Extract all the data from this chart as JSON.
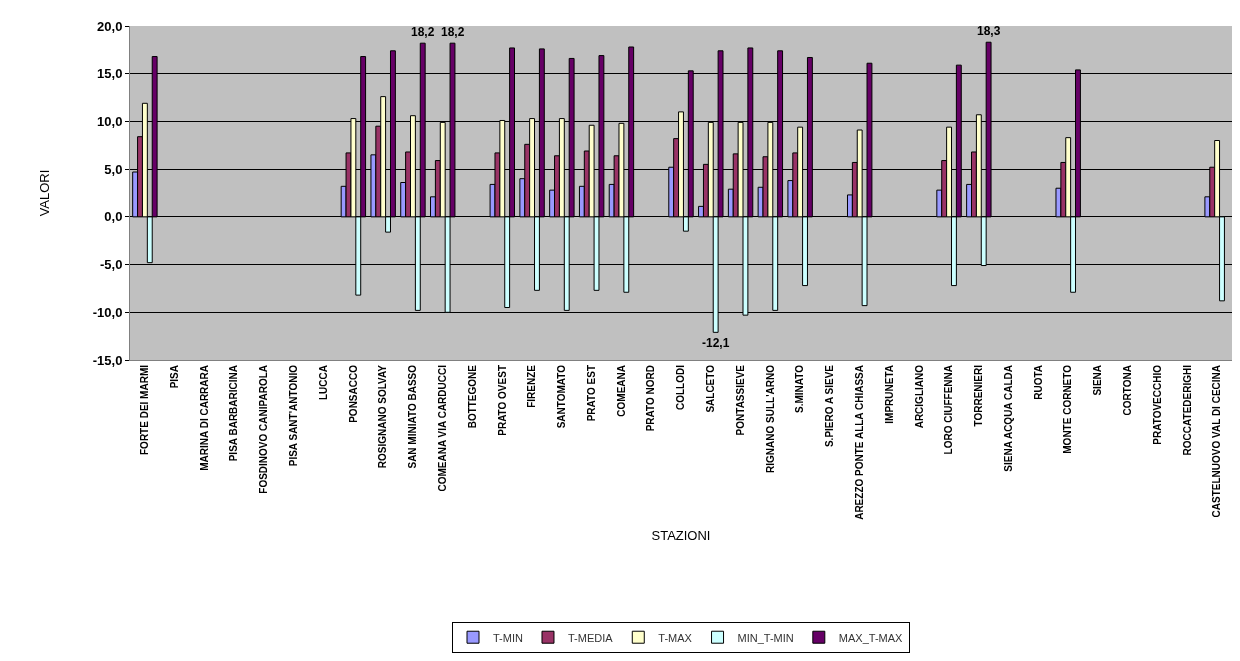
{
  "chart_data": {
    "type": "bar",
    "xlabel": "STAZIONI",
    "ylabel": "VALORI",
    "categories": [
      "FORTE DEI MARMI",
      "PISA",
      "MARINA DI CARRARA",
      "PISA BARBARICINA",
      "FOSDINOVO CANIPAROLA",
      "PISA SANT'ANTONIO",
      "LUCCA",
      "PONSACCO",
      "ROSIGNANO SOLVAY",
      "SAN MINIATO BASSO",
      "COMEANA VIA CARDUCCI",
      "BOTTEGONE",
      "PRATO OVEST",
      "FIRENZE",
      "SANTOMATO",
      "PRATO EST",
      "COMEANA",
      "PRATO NORD",
      "COLLODI",
      "SALCETO",
      "PONTASSIEVE",
      "RIGNANO SULL'ARNO",
      "S.MINATO",
      "S.PIERO A SIEVE",
      "AREZZO PONTE ALLA CHIASSA",
      "IMPRUNETA",
      "ARCIGLIANO",
      "LORO CIUFFENNA",
      "TORRENIERI",
      "SIENA ACQUA CALDA",
      "RUOTA",
      "MONTE CORNETO",
      "SIENA",
      "CORTONA",
      "PRATOVECCHIO",
      "ROCCATEDERIGHI",
      "CASTELNUOVO VAL DI CECINA"
    ],
    "series": [
      {
        "name": "T-MIN",
        "color": "#9999ff",
        "values": [
          4.7,
          null,
          null,
          null,
          null,
          null,
          null,
          3.2,
          6.5,
          3.6,
          2.1,
          null,
          3.4,
          4.0,
          2.8,
          3.2,
          3.4,
          null,
          5.2,
          1.1,
          2.9,
          3.1,
          3.8,
          null,
          2.3,
          null,
          null,
          2.8,
          3.4,
          null,
          null,
          3.0,
          null,
          null,
          null,
          null,
          2.1
        ]
      },
      {
        "name": "T-MEDIA",
        "color": "#993366",
        "values": [
          8.4,
          null,
          null,
          null,
          null,
          null,
          null,
          6.7,
          9.5,
          6.8,
          5.9,
          null,
          6.7,
          7.6,
          6.4,
          6.9,
          6.4,
          null,
          8.2,
          5.5,
          6.6,
          6.3,
          6.7,
          null,
          5.7,
          null,
          null,
          5.9,
          6.8,
          null,
          null,
          5.7,
          null,
          null,
          null,
          null,
          5.2
        ]
      },
      {
        "name": "T-MAX",
        "color": "#ffffcc",
        "values": [
          11.9,
          null,
          null,
          null,
          null,
          null,
          null,
          10.3,
          12.6,
          10.6,
          9.9,
          null,
          10.1,
          10.3,
          10.3,
          9.6,
          9.8,
          null,
          11.0,
          9.9,
          9.9,
          9.9,
          9.4,
          null,
          9.1,
          null,
          null,
          9.4,
          10.7,
          null,
          null,
          8.3,
          null,
          null,
          null,
          null,
          8.0
        ]
      },
      {
        "name": "MIN_T-MIN",
        "color": "#ccffff",
        "values": [
          -4.8,
          null,
          null,
          null,
          null,
          null,
          null,
          -8.2,
          -1.6,
          -9.8,
          -10.0,
          null,
          -9.5,
          -7.7,
          -9.8,
          -7.7,
          -7.9,
          null,
          -1.5,
          -12.1,
          -10.3,
          -9.8,
          -7.2,
          null,
          -9.3,
          null,
          null,
          -7.2,
          -5.1,
          null,
          null,
          -7.9,
          null,
          null,
          null,
          null,
          -8.8
        ],
        "value_labels": [
          null,
          null,
          null,
          null,
          null,
          null,
          null,
          null,
          null,
          null,
          null,
          null,
          null,
          null,
          null,
          null,
          null,
          null,
          null,
          "-12,1",
          null,
          null,
          null,
          null,
          null,
          null,
          null,
          null,
          null,
          null,
          null,
          null,
          null,
          null,
          null,
          null,
          null
        ]
      },
      {
        "name": "MAX_T-MAX",
        "color": "#660066",
        "values": [
          16.8,
          null,
          null,
          null,
          null,
          null,
          null,
          16.8,
          17.4,
          18.2,
          18.2,
          null,
          17.7,
          17.6,
          16.6,
          16.9,
          17.8,
          null,
          15.3,
          17.4,
          17.7,
          17.4,
          16.7,
          null,
          16.1,
          null,
          null,
          15.9,
          18.3,
          null,
          null,
          15.4,
          null,
          null,
          null,
          null,
          null
        ],
        "value_labels": [
          null,
          null,
          null,
          null,
          null,
          null,
          null,
          null,
          null,
          "18,2",
          "18,2",
          null,
          null,
          null,
          null,
          null,
          null,
          null,
          null,
          null,
          null,
          null,
          null,
          null,
          null,
          null,
          null,
          null,
          "18,3",
          null,
          null,
          null,
          null,
          null,
          null,
          null,
          null
        ]
      }
    ],
    "ylim": [
      -15,
      20
    ],
    "yticks": [
      {
        "value": -15,
        "label": "-15,0"
      },
      {
        "value": -10,
        "label": "-10,0"
      },
      {
        "value": -5,
        "label": "-5,0"
      },
      {
        "value": 0,
        "label": "0,0"
      },
      {
        "value": 5,
        "label": "5,0"
      },
      {
        "value": 10,
        "label": "10,0"
      },
      {
        "value": 15,
        "label": "15,0"
      },
      {
        "value": 20,
        "label": "20,0"
      }
    ],
    "grid": "y",
    "legend": "bottom"
  }
}
